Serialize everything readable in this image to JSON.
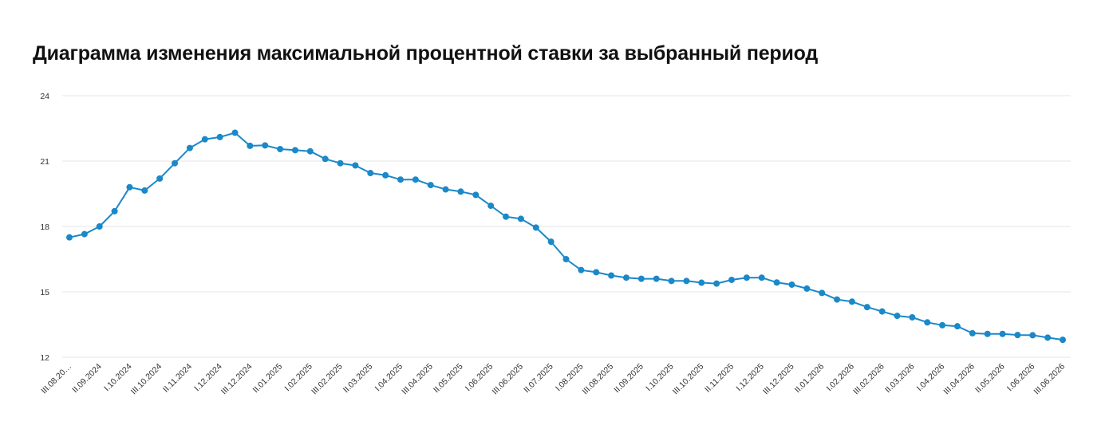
{
  "chart_data": {
    "type": "line",
    "title": "Диаграмма изменения максимальной процентной ставки за выбранный период",
    "xlabel": "",
    "ylabel": "",
    "ylim": [
      12,
      24
    ],
    "yticks": [
      12,
      15,
      18,
      21,
      24
    ],
    "grid": true,
    "legend": "none",
    "line_color": "#1a88c9",
    "x_tick_labels": [
      "III.08.20…",
      "II.09.2024",
      "I.10.2024",
      "III.10.2024",
      "II.11.2024",
      "I.12.2024",
      "III.12.2024",
      "II.01.2025",
      "I.02.2025",
      "III.02.2025",
      "II.03.2025",
      "I.04.2025",
      "III.04.2025",
      "II.05.2025",
      "I.06.2025",
      "III.06.2025",
      "II.07.2025",
      "I.08.2025",
      "III.08.2025",
      "II.09.2025",
      "I.10.2025",
      "III.10.2025",
      "II.11.2025",
      "I.12.2025",
      "III.12.2025",
      "II.01.2026",
      "I.02.2026",
      "III.02.2026",
      "II.03.2026",
      "I.04.2026",
      "III.04.2026",
      "II.05.2026",
      "I.06.2026",
      "III.06.2026"
    ],
    "series": [
      {
        "values": [
          17.5,
          17.65,
          18.0,
          18.7,
          19.8,
          19.65,
          20.2,
          20.9,
          21.6,
          22.0,
          22.1,
          22.3,
          21.7,
          21.72,
          21.55,
          21.5,
          21.45,
          21.1,
          20.9,
          20.8,
          20.45,
          20.35,
          20.15,
          20.15,
          19.9,
          19.7,
          19.6,
          19.45,
          18.95,
          18.45,
          18.35,
          17.95,
          17.3,
          16.5,
          16.0,
          15.9,
          15.75,
          15.65,
          15.6,
          15.6,
          15.5,
          15.5,
          15.42,
          15.38,
          15.55,
          15.65,
          15.65,
          15.43,
          15.33,
          15.15,
          14.95,
          14.65,
          14.55,
          14.3,
          14.1,
          13.9,
          13.83,
          13.6,
          13.47,
          13.42,
          13.1,
          13.07,
          13.07,
          13.02,
          13.01,
          12.9,
          12.8
        ]
      }
    ]
  }
}
